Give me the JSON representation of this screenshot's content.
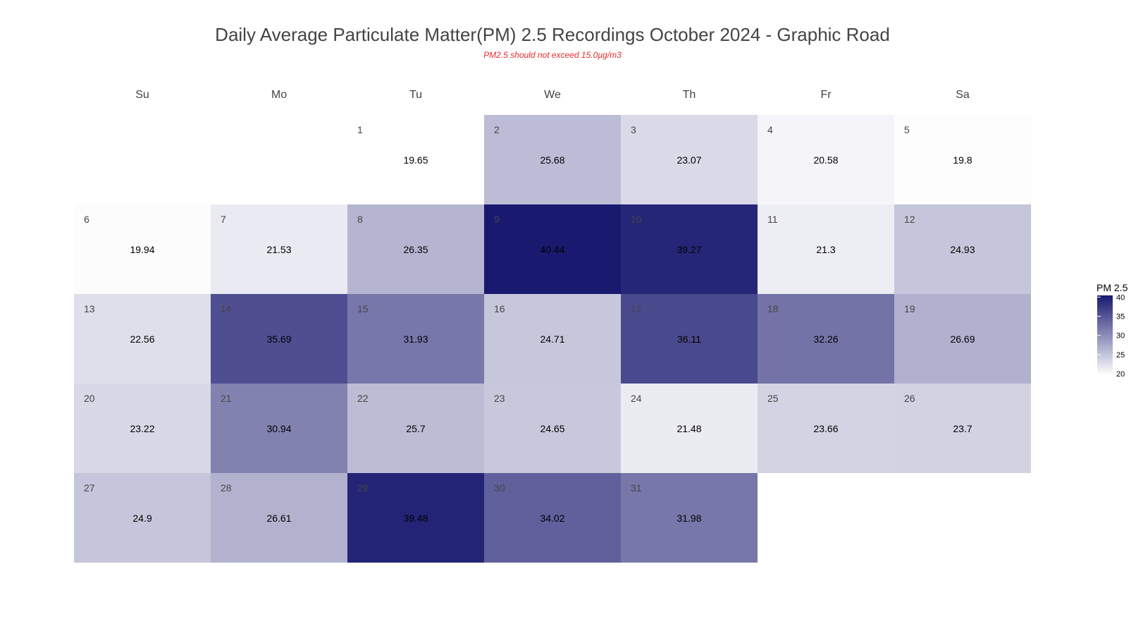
{
  "chart_data": {
    "type": "heatmap",
    "title": "Daily Average Particulate Matter(PM) 2.5 Recordings October 2024 -  Graphic Road",
    "subtitle": "PM2.5 should not exceed 15.0µg/m3",
    "weekdays": [
      "Su",
      "Mo",
      "Tu",
      "We",
      "Th",
      "Fr",
      "Sa"
    ],
    "first_weekday_index": 2,
    "days": [
      1,
      2,
      3,
      4,
      5,
      6,
      7,
      8,
      9,
      10,
      11,
      12,
      13,
      14,
      15,
      16,
      17,
      18,
      19,
      20,
      21,
      22,
      23,
      24,
      25,
      26,
      27,
      28,
      29,
      30,
      31
    ],
    "values": [
      "19.65",
      "25.68",
      "23.07",
      "20.58",
      "19.8",
      "19.94",
      "21.53",
      "26.35",
      "40.44",
      "39.27",
      "21.3",
      "24.93",
      "22.56",
      "35.69",
      "31.93",
      "24.71",
      "36.11",
      "32.26",
      "26.69",
      "23.22",
      "30.94",
      "25.7",
      "24.65",
      "21.48",
      "23.66",
      "23.7",
      "24.9",
      "26.61",
      "39.48",
      "34.02",
      "31.98"
    ],
    "legend": {
      "title": "PM 2.5",
      "ticks": [
        "40",
        "35",
        "30",
        "25",
        "20"
      ],
      "min": 19.65,
      "max": 40.44
    },
    "colors": {
      "low": "#ffffff",
      "high": "#191970"
    }
  }
}
